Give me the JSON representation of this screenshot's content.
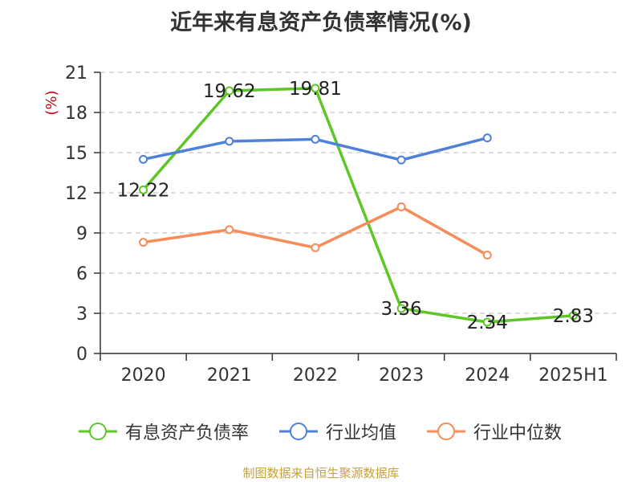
{
  "chart_data": {
    "type": "line",
    "title": "近年来有息资产负债率情况(%)",
    "ylabel": "(%)",
    "categories": [
      "2020",
      "2021",
      "2022",
      "2023",
      "2024",
      "2025H1"
    ],
    "ylim": [
      0,
      21
    ],
    "yticks": [
      "0",
      "3",
      "6",
      "9",
      "12",
      "15",
      "18",
      "21"
    ],
    "grid": true,
    "legend_position": "bottom",
    "series": [
      {
        "name": "有息资产负债率",
        "color": "#5dc728",
        "values": [
          12.22,
          19.62,
          19.81,
          3.36,
          2.34,
          2.83
        ],
        "labels": [
          "12.22",
          "19.62",
          "19.81",
          "3.36",
          "2.34",
          "2.83"
        ]
      },
      {
        "name": "行业均值",
        "color": "#4f81d9",
        "values": [
          14.5,
          15.85,
          16.0,
          14.45,
          16.1,
          null
        ]
      },
      {
        "name": "行业中位数",
        "color": "#f68c5a",
        "values": [
          8.3,
          9.25,
          7.9,
          10.95,
          7.35,
          null
        ]
      }
    ]
  },
  "source": {
    "text": "制图数据来自恒生聚源数据库",
    "color": "#c8a03c"
  }
}
